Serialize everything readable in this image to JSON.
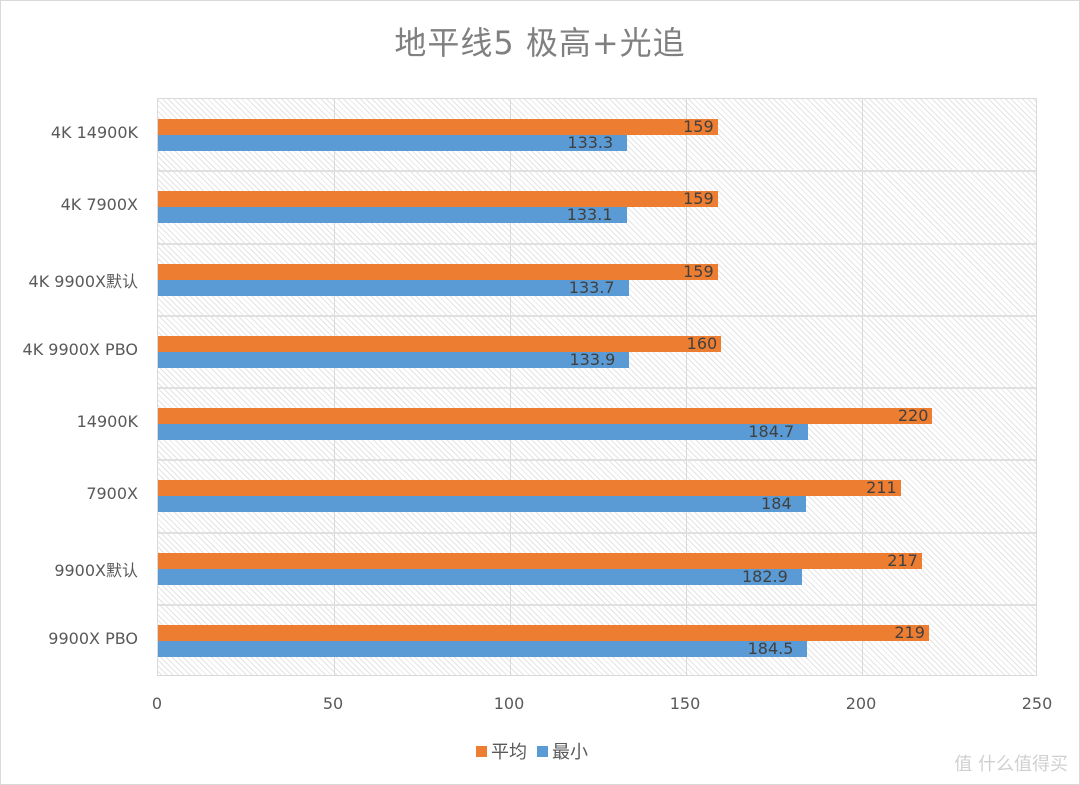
{
  "chart_data": {
    "type": "bar",
    "orientation": "horizontal",
    "title": "地平线5  极高+光追",
    "xlabel": "",
    "ylabel": "",
    "xlim": [
      0,
      250
    ],
    "x_ticks": [
      "0",
      "50",
      "100",
      "150",
      "200",
      "250"
    ],
    "grid": true,
    "legend_position": "bottom",
    "categories": [
      "4K 14900K",
      "4K 7900X",
      "4K 9900X默认",
      "4K 9900X PBO",
      "14900K",
      "7900X",
      "9900X默认",
      "9900X PBO"
    ],
    "series": [
      {
        "name": "平均",
        "color": "#ed7d31",
        "values": [
          159,
          159,
          159,
          160,
          220,
          211,
          217,
          219
        ]
      },
      {
        "name": "最小",
        "color": "#5b9bd5",
        "values": [
          133.3,
          133.1,
          133.7,
          133.9,
          184.7,
          184,
          182.9,
          184.5
        ]
      }
    ]
  },
  "title": "地平线5  极高+光追",
  "categories": [
    "4K 14900K",
    "4K 7900X",
    "4K 9900X默认",
    "4K 9900X PBO",
    "14900K",
    "7900X",
    "9900X默认",
    "9900X PBO"
  ],
  "avg": {
    "label": "平均",
    "color": "#ed7d31",
    "values": [
      "159",
      "159",
      "159",
      "160",
      "220",
      "211",
      "217",
      "219"
    ]
  },
  "min": {
    "label": "最小",
    "color": "#5b9bd5",
    "values": [
      "133.3",
      "133.1",
      "133.7",
      "133.9",
      "184.7",
      "184",
      "182.9",
      "184.5"
    ]
  },
  "ticks": [
    "0",
    "50",
    "100",
    "150",
    "200",
    "250"
  ],
  "legend": {
    "avg": "平均",
    "min": "最小"
  },
  "watermark": "值 什么值得买"
}
